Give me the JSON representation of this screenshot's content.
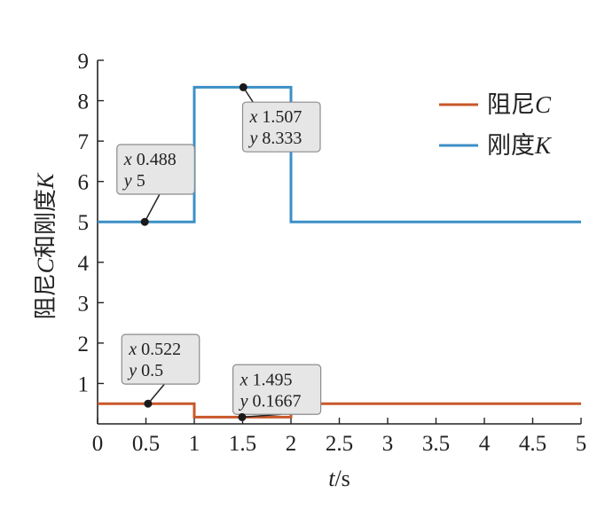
{
  "chart_data": {
    "type": "line",
    "step": true,
    "xlabel": {
      "var": "t",
      "unit": "/s"
    },
    "ylabel": {
      "prefix": "阻尼",
      "c": "C",
      "mid": "和刚度",
      "k": "K"
    },
    "xlim": [
      0,
      5
    ],
    "ylim": [
      0,
      9
    ],
    "xticks": [
      0,
      0.5,
      1,
      1.5,
      2,
      2.5,
      3,
      3.5,
      4,
      4.5,
      5
    ],
    "xtick_labels": [
      "0",
      "0.5",
      "1",
      "1.5",
      "2",
      "2.5",
      "3",
      "3.5",
      "4",
      "4.5",
      "5"
    ],
    "yticks": [
      1,
      2,
      3,
      4,
      5,
      6,
      7,
      8,
      9
    ],
    "ytick_labels": [
      "1",
      "2",
      "3",
      "4",
      "5",
      "6",
      "7",
      "8",
      "9"
    ],
    "grid": false,
    "legend_position": "top-right",
    "series": [
      {
        "key": "damping",
        "legend_prefix": "阻尼",
        "legend_italic": "C",
        "color": "#c8582a",
        "x": [
          0,
          1,
          1,
          2,
          2,
          5
        ],
        "y": [
          0.5,
          0.5,
          0.1667,
          0.1667,
          0.5,
          0.5
        ]
      },
      {
        "key": "stiffness",
        "legend_prefix": "刚度",
        "legend_italic": "K",
        "color": "#3c8fc6",
        "x": [
          0,
          1,
          1,
          2,
          2,
          5
        ],
        "y": [
          5,
          5,
          8.333,
          8.333,
          5,
          5
        ]
      }
    ],
    "datatips": [
      {
        "x": 0.488,
        "y": 5,
        "x_text": "0.488",
        "y_text": "5",
        "box_anchor": [
          0.2,
          6.3
        ]
      },
      {
        "x": 1.507,
        "y": 8.333,
        "x_text": "1.507",
        "y_text": "8.333",
        "box_anchor": [
          1.5,
          7.35
        ]
      },
      {
        "x": 0.522,
        "y": 0.5,
        "x_text": "0.522",
        "y_text": "0.5",
        "box_anchor": [
          0.25,
          1.6
        ]
      },
      {
        "x": 1.495,
        "y": 0.1667,
        "x_text": "1.495",
        "y_text": "0.1667",
        "box_anchor": [
          1.4,
          0.85
        ]
      }
    ]
  }
}
